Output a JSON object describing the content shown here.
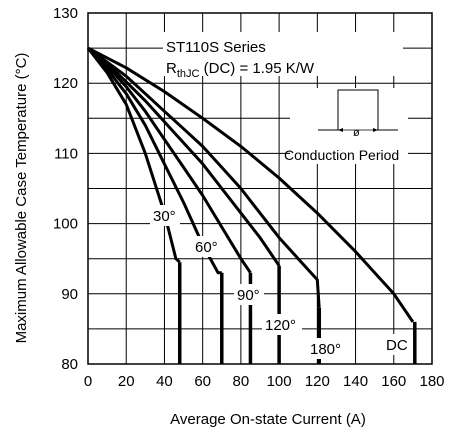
{
  "chart_data": {
    "type": "line",
    "title": "",
    "xlabel": "Average On-state Current (A)",
    "ylabel": "Maximum Allowable Case Temperature (°C)",
    "xlim": [
      0,
      180
    ],
    "ylim": [
      80,
      130
    ],
    "x_ticks": [
      "0",
      "20",
      "40",
      "60",
      "80",
      "100",
      "120",
      "140",
      "160",
      "180"
    ],
    "y_ticks": [
      "80",
      "90",
      "100",
      "110",
      "120",
      "130"
    ],
    "grid": true,
    "annotations": {
      "series_title": "ST110S Series",
      "rth_main": "R",
      "rth_sub": "thJC",
      "rth_rest": " (DC) = 1.95 K/W",
      "conduction_label": "Conduction Period",
      "phi_symbol": "ø"
    },
    "series": [
      {
        "name": "30°",
        "points": [
          [
            0,
            125
          ],
          [
            10,
            121.5
          ],
          [
            20,
            117
          ],
          [
            30,
            110
          ],
          [
            40,
            101.5
          ],
          [
            46,
            95
          ],
          [
            48,
            94.5
          ]
        ],
        "drop_x": 48
      },
      {
        "name": "60°",
        "points": [
          [
            0,
            125
          ],
          [
            10,
            122
          ],
          [
            20,
            118.5
          ],
          [
            30,
            114
          ],
          [
            40,
            108.5
          ],
          [
            50,
            103
          ],
          [
            60,
            97
          ],
          [
            68,
            93
          ],
          [
            70,
            93
          ]
        ],
        "drop_x": 70
      },
      {
        "name": "90°",
        "points": [
          [
            0,
            125
          ],
          [
            10,
            122.5
          ],
          [
            20,
            119.5
          ],
          [
            30,
            116
          ],
          [
            40,
            112
          ],
          [
            50,
            108
          ],
          [
            60,
            104
          ],
          [
            70,
            99.5
          ],
          [
            80,
            95
          ],
          [
            85,
            93
          ]
        ],
        "drop_x": 85
      },
      {
        "name": "120°",
        "points": [
          [
            0,
            125
          ],
          [
            10,
            122.8
          ],
          [
            20,
            120.2
          ],
          [
            30,
            117.5
          ],
          [
            40,
            114.5
          ],
          [
            50,
            111.5
          ],
          [
            60,
            108.5
          ],
          [
            70,
            105
          ],
          [
            80,
            101.5
          ],
          [
            90,
            98
          ],
          [
            100,
            94
          ]
        ],
        "drop_x": 100
      },
      {
        "name": "180°",
        "points": [
          [
            0,
            125
          ],
          [
            10,
            123
          ],
          [
            20,
            121
          ],
          [
            30,
            118.5
          ],
          [
            40,
            116
          ],
          [
            50,
            113.5
          ],
          [
            60,
            111
          ],
          [
            70,
            108
          ],
          [
            80,
            105
          ],
          [
            90,
            101.5
          ],
          [
            100,
            98
          ],
          [
            110,
            95
          ],
          [
            120,
            92
          ],
          [
            121,
            88
          ]
        ],
        "drop_x": 121
      },
      {
        "name": "DC",
        "points": [
          [
            0,
            125
          ],
          [
            20,
            122.2
          ],
          [
            40,
            118.8
          ],
          [
            60,
            115
          ],
          [
            80,
            111
          ],
          [
            100,
            106.5
          ],
          [
            120,
            101.5
          ],
          [
            140,
            96
          ],
          [
            160,
            90
          ],
          [
            170,
            86
          ]
        ],
        "drop_x": 171
      }
    ],
    "series_labels": [
      "30°",
      "60°",
      "90°",
      "120°",
      "180°",
      "DC"
    ]
  }
}
